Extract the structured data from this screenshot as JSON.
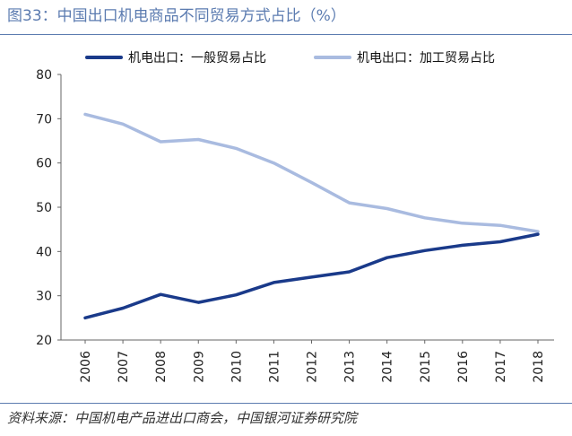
{
  "header": {
    "title": "图33：中国出口机电商品不同贸易方式占比（%）"
  },
  "footer": {
    "source": "资料来源：中国机电产品进出口商会，中国银河证券研究院"
  },
  "chart_data": {
    "type": "line",
    "title": "中国出口机电商品不同贸易方式占比（%）",
    "xlabel": "",
    "ylabel": "",
    "categories": [
      "2006",
      "2007",
      "2008",
      "2009",
      "2010",
      "2011",
      "2012",
      "2013",
      "2014",
      "2015",
      "2016",
      "2017",
      "2018"
    ],
    "ylim": [
      20,
      80
    ],
    "yticks": [
      20,
      30,
      40,
      50,
      60,
      70,
      80
    ],
    "legend_position": "top",
    "series": [
      {
        "name": "机电出口：一般贸易占比",
        "color": "#1a3a8a",
        "values": [
          25.0,
          27.2,
          30.3,
          28.5,
          30.2,
          33.0,
          34.2,
          35.4,
          38.6,
          40.2,
          41.4,
          42.2,
          43.9
        ]
      },
      {
        "name": "机电出口：加工贸易占比",
        "color": "#a9bbe0",
        "values": [
          71.0,
          68.8,
          64.8,
          65.3,
          63.3,
          60.0,
          55.6,
          51.0,
          49.7,
          47.6,
          46.4,
          45.9,
          44.5
        ]
      }
    ]
  }
}
